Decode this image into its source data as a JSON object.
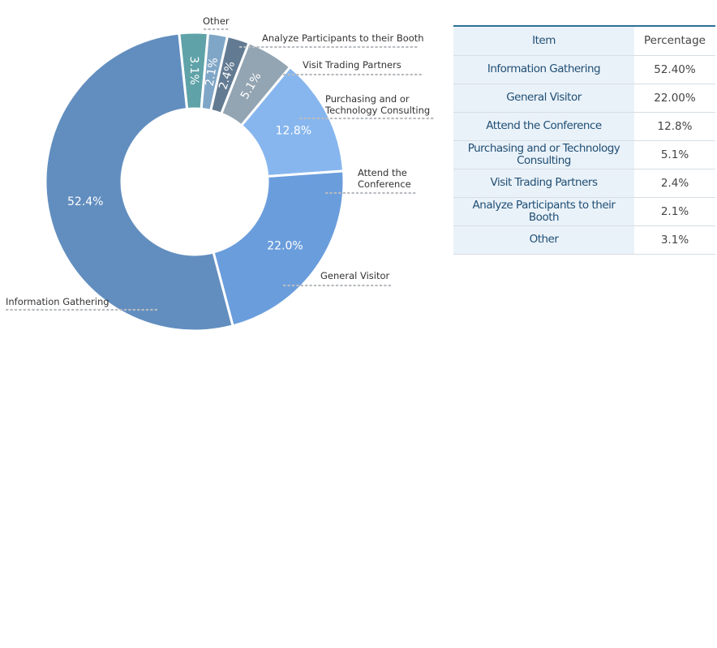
{
  "chart_data": {
    "type": "pie",
    "donut": true,
    "slices": [
      {
        "label": "Other",
        "value": 3.1,
        "value_label": "3.1%",
        "color": "#5fa3a8"
      },
      {
        "label": "Analyze Participants to their Booth",
        "value": 2.1,
        "value_label": "2.1%",
        "color": "#7fa6c6"
      },
      {
        "label": "Visit Trading Partners",
        "value": 2.4,
        "value_label": "2.4%",
        "color": "#637b92"
      },
      {
        "label": "Purchasing and or Technology Consulting",
        "value": 5.1,
        "value_label": "5.1%",
        "color": "#93a4b2"
      },
      {
        "label": "Attend the Conference",
        "value": 12.8,
        "value_label": "12.8%",
        "color": "#87b6ee"
      },
      {
        "label": "General Visitor",
        "value": 22.0,
        "value_label": "22.0%",
        "color": "#6a9ddc"
      },
      {
        "label": "Information Gathering",
        "value": 52.4,
        "value_label": "52.4%",
        "color": "#628ebf"
      }
    ],
    "leader_labels": {
      "other": "Other",
      "analyze": "Analyze Participants to their Booth",
      "visit": "Visit Trading Partners",
      "purchasing_line1": "Purchasing and or",
      "purchasing_line2": "Technology Consulting",
      "attend_line1": "Attend the",
      "attend_line2": "Conference",
      "general": "General Visitor",
      "info": "Information Gathering"
    }
  },
  "table": {
    "header_item": "Item",
    "header_percentage": "Percentage",
    "rows": [
      {
        "item": "Information Gathering",
        "percentage": "52.40%"
      },
      {
        "item": "General Visitor",
        "percentage": "22.00%"
      },
      {
        "item": "Attend the Conference",
        "percentage": "12.8%"
      },
      {
        "item": "Purchasing and or Technology Consulting",
        "percentage": "5.1%"
      },
      {
        "item": "Visit Trading Partners",
        "percentage": "2.4%"
      },
      {
        "item": "Analyze Participants to their Booth",
        "percentage": "2.1%"
      },
      {
        "item": "Other",
        "percentage": "3.1%"
      }
    ]
  }
}
